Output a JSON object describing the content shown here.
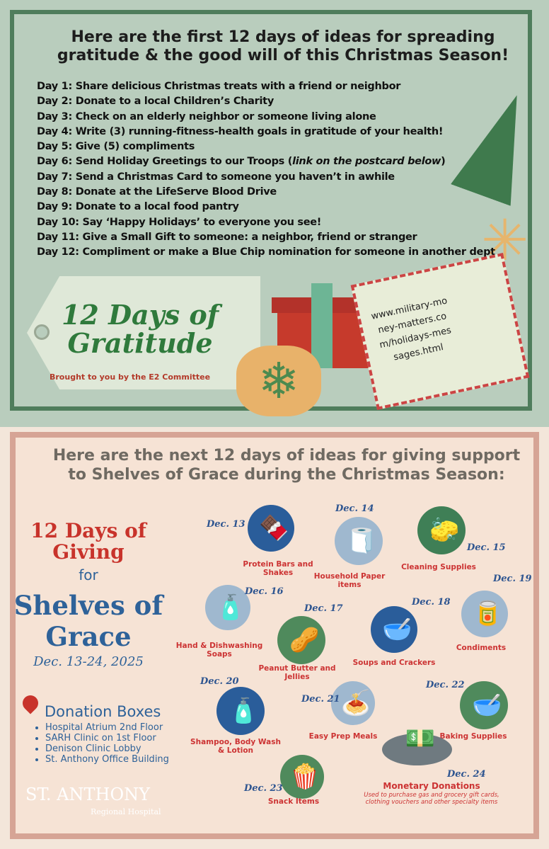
{
  "top": {
    "title": "Here are the first 12 days of ideas for spreading gratitude & the good will of this Christmas Season!",
    "days": [
      "Day 1: Share delicious Christmas treats with a friend or neighbor",
      "Day 2: Donate to a local Children’s Charity",
      "Day 3: Check on an elderly neighbor or someone living alone",
      "Day 4: Write (3) running-fitness-health goals in gratitude of your health!",
      "Day 5: Give (5) compliments",
      "Day 6: Send Holiday Greetings to our Troops (",
      "Day 7: Send a Christmas Card to someone you haven’t in awhile",
      "Day 8: Donate at the LifeServe Blood Drive",
      "Day 9: Donate to a local food pantry",
      "Day 10:  Say ‘Happy Holidays’ to everyone you see!",
      "Day 11: Give a Small Gift to someone: a neighbor, friend or stranger",
      "Day 12: Compliment or make a Blue Chip nomination for someone in another dept"
    ],
    "day6_link": "link on the postcard below",
    "day6_end": ")",
    "tag_title": "12 Days of Gratitude",
    "tag_sub": "Brought to you by the E2 Committee",
    "postcard_url": "www.military-money-matters.com/holidays-messages.html"
  },
  "bottom": {
    "title": "Here are the next 12 days of ideas for giving support to Shelves of Grace during the Christmas Season:",
    "giving": "12 Days of Giving",
    "for": "for",
    "shelves": "Shelves of Grace",
    "dates": "Dec. 13-24, 2025",
    "donation_title": "Donation Boxes",
    "locations": [
      "Hospital Atrium 2nd Floor",
      "SARH Clinic on 1st Floor",
      "Denison Clinic Lobby",
      "St. Anthony Office Building"
    ],
    "logo": "ST. ANTHONY",
    "logo_sub": "Regional Hospital",
    "items": [
      {
        "date": "Dec. 13",
        "label": "Protein Bars and Shakes",
        "color": "#2a5d9a",
        "icon": "🍫"
      },
      {
        "date": "Dec. 14",
        "label": "Household Paper items",
        "color": "#9fb8cf",
        "icon": "🧻"
      },
      {
        "date": "Dec. 15",
        "label": "Cleaning Supplies",
        "color": "#3f7f56",
        "icon": "🧽"
      },
      {
        "date": "Dec. 16",
        "label": "Hand & Dishwashing Soaps",
        "color": "#9fb8cf",
        "icon": "🧴"
      },
      {
        "date": "Dec. 17",
        "label": "Peanut Butter and Jellies",
        "color": "#4f8a5c",
        "icon": "🥜"
      },
      {
        "date": "Dec. 18",
        "label": "Soups and Crackers",
        "color": "#2a5d9a",
        "icon": "🥣"
      },
      {
        "date": "Dec. 19",
        "label": "Condiments",
        "color": "#9fb8cf",
        "icon": "🥫"
      },
      {
        "date": "Dec. 20",
        "label": "Shampoo, Body Wash & Lotion",
        "color": "#2a5d9a",
        "icon": "🧴"
      },
      {
        "date": "Dec. 21",
        "label": "Easy Prep Meals",
        "color": "#9fb8cf",
        "icon": "🍝"
      },
      {
        "date": "Dec. 22",
        "label": "Baking Supplies",
        "color": "#4f8a5c",
        "icon": "🥣"
      },
      {
        "date": "Dec. 23",
        "label": "Snack Items",
        "color": "#4f8a5c",
        "icon": "🍿"
      },
      {
        "date": "Dec. 24",
        "label": "Monetary Donations",
        "color": "#6f7a80",
        "icon": "💵"
      }
    ],
    "monetary_note": "Used to purchase gas and grocery gift cards, clothing vouchers and other specialty items"
  }
}
